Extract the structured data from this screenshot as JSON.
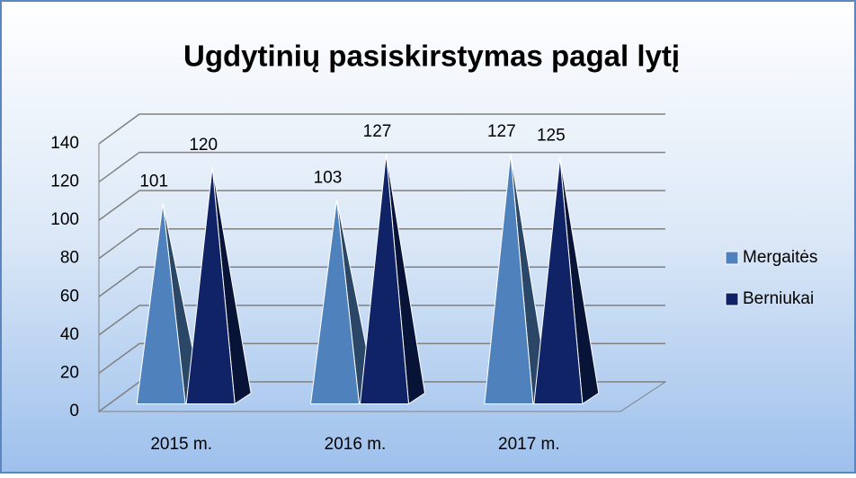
{
  "chart_data": {
    "type": "pyramid",
    "title": "Ugdytinių pasiskirstymas pagal lytį",
    "categories": [
      "2015 m.",
      "2016 m.",
      "2017 m."
    ],
    "series": [
      {
        "name": "Mergaitės",
        "color": "#4f81bd",
        "values": [
          101,
          103,
          127
        ]
      },
      {
        "name": "Berniukai",
        "color": "#0f2366",
        "values": [
          120,
          127,
          125
        ]
      }
    ],
    "ylim": [
      0,
      140
    ],
    "yticks": [
      0,
      20,
      40,
      60,
      80,
      100,
      120,
      140
    ],
    "grid": true,
    "legend": "right"
  }
}
